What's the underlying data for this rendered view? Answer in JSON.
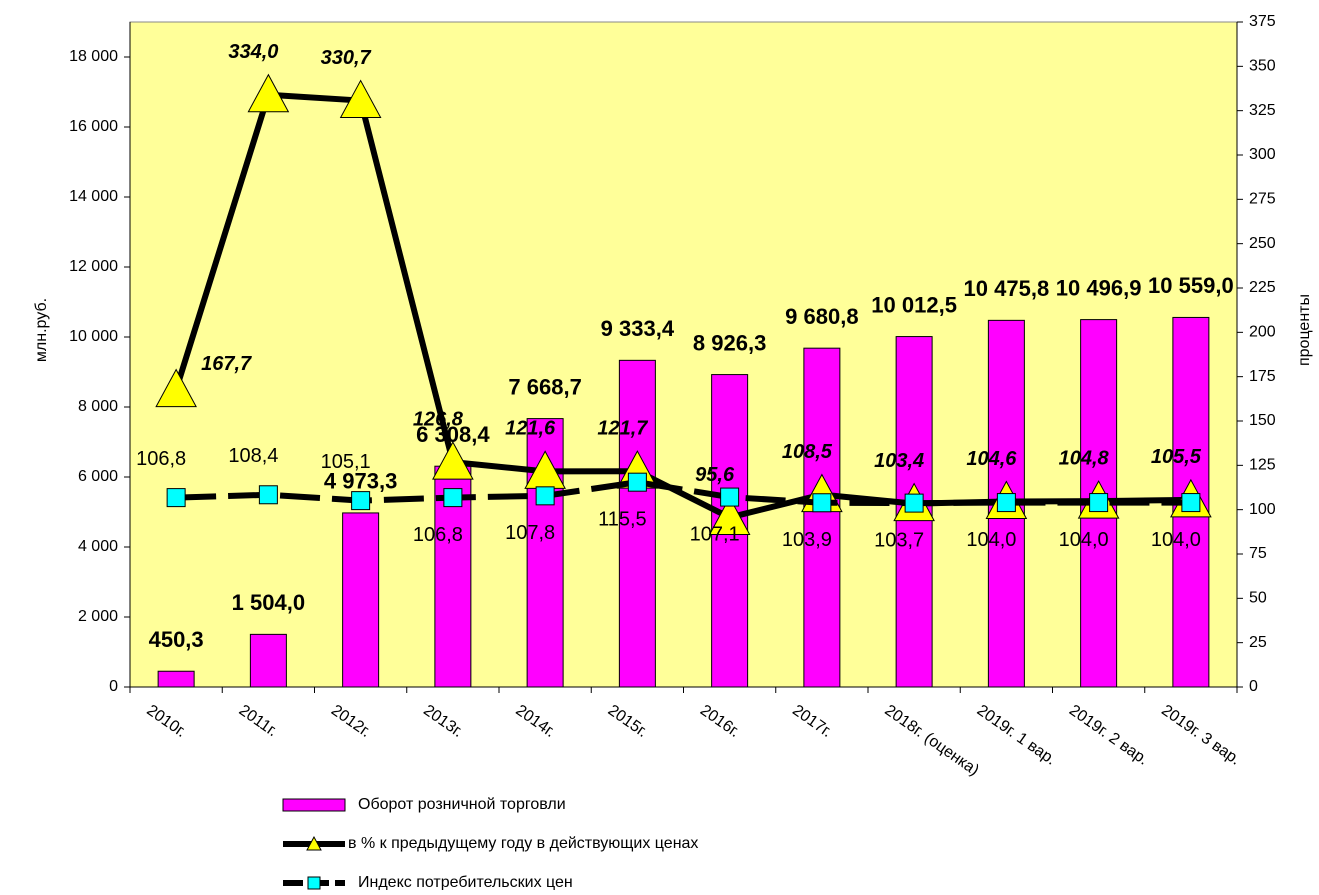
{
  "chart_data": {
    "type": "bar-line",
    "categories": [
      "2010г.",
      "2011г.",
      "2012г.",
      "2013г.",
      "2014г.",
      "2015г.",
      "2016г.",
      "2017г.",
      "2018г. (оценка)",
      "2019г. 1 вар.",
      "2019г. 2 вар.",
      "2019г. 3 вар."
    ],
    "ylabel": "млн.руб.",
    "y2label": "проценты",
    "ylim": [
      0,
      19000
    ],
    "yticks": [
      0,
      {
        "value": 2000,
        "label": "2 000"
      },
      {
        "value": 4000,
        "label": "4 000"
      },
      {
        "value": 6000,
        "label": "6 000"
      },
      {
        "value": 8000,
        "label": "8 000"
      },
      {
        "value": 10000,
        "label": "10 000"
      },
      {
        "value": 12000,
        "label": "12 000"
      },
      {
        "value": 14000,
        "label": "14 000"
      },
      {
        "value": 16000,
        "label": "16 000"
      },
      {
        "value": 18000,
        "label": "18 000"
      }
    ],
    "y2lim": [
      0,
      375
    ],
    "y2ticks": [
      0,
      25,
      50,
      75,
      100,
      125,
      150,
      175,
      200,
      225,
      250,
      275,
      300,
      325,
      350,
      375
    ],
    "background": "#ffff99",
    "series": [
      {
        "name": "Оборот розничной торговли",
        "color": "#ff00ff",
        "kind": "bar",
        "values": [
          450.3,
          1504.0,
          4973.3,
          6308.4,
          7668.7,
          9333.4,
          8926.3,
          9680.8,
          10012.5,
          10475.8,
          10496.9,
          10559.0
        ],
        "value_labels": [
          "450,3",
          "1 504,0",
          "4 973,3",
          "6 308,4",
          "7 668,7",
          "9 333,4",
          "8 926,3",
          "9 680,8",
          "10 012,5",
          "10 475,8",
          "10 496,9",
          "10 559,0"
        ]
      },
      {
        "name": "в % к предыдущему году в действующих ценах",
        "color": "#000000",
        "marker_color": "#ffff00",
        "kind": "line",
        "marker": "triangle",
        "axis": "y2",
        "values": [
          167.7,
          334.0,
          330.7,
          126.8,
          121.6,
          121.7,
          95.6,
          108.5,
          103.4,
          104.6,
          104.8,
          105.5
        ],
        "value_labels": [
          "167,7",
          "334,0",
          "330,7",
          "126,8",
          "121,6",
          "121,7",
          "95,6",
          "108,5",
          "103,4",
          "104,6",
          "104,8",
          "105,5"
        ]
      },
      {
        "name": "Индекс потребительских цен",
        "color": "#000000",
        "marker_color": "#00ffff",
        "kind": "line",
        "marker": "square",
        "axis": "y2",
        "values": [
          106.8,
          108.4,
          105.1,
          106.8,
          107.8,
          115.5,
          107.1,
          103.9,
          103.7,
          104.0,
          104.0,
          104.0
        ],
        "value_labels": [
          "106,8",
          "108,4",
          "105,1",
          "106,8",
          "107,8",
          "115,5",
          "107,1",
          "103,9",
          "103,7",
          "104,0",
          "104,0",
          "104,0"
        ]
      }
    ]
  }
}
